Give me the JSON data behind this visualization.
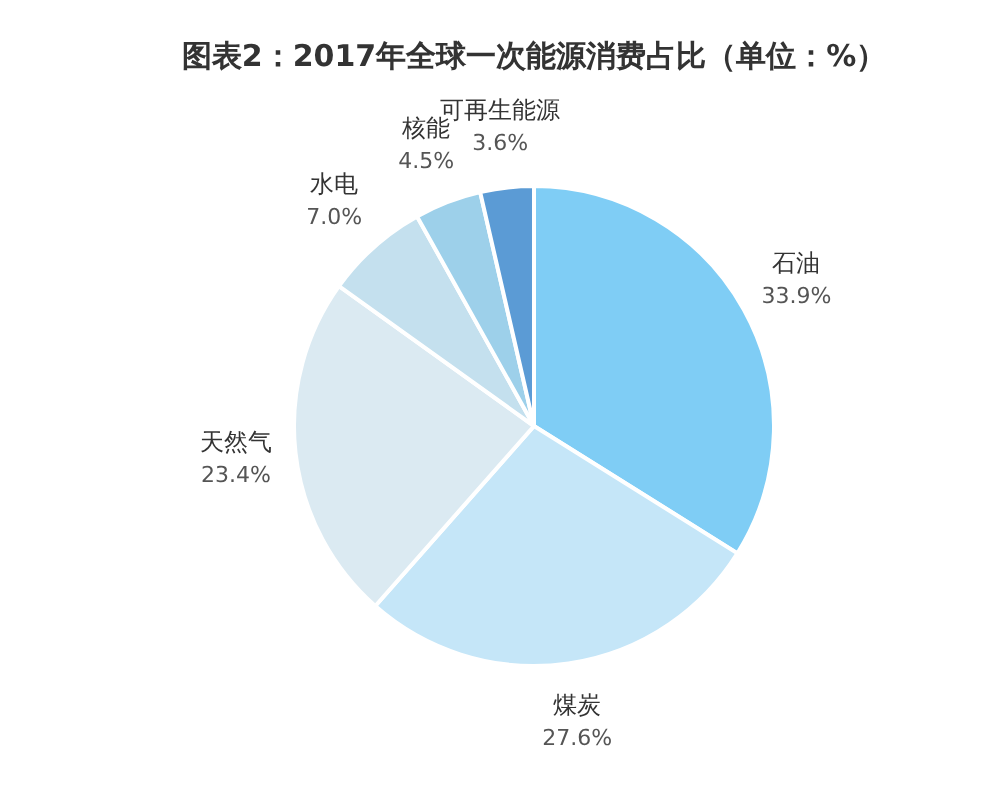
{
  "chart_data": {
    "type": "pie",
    "title": "图表2：2017年全球一次能源消费占比（单位：%）",
    "categories": [
      "石油",
      "煤炭",
      "天然气",
      "水电",
      "核能",
      "可再生能源"
    ],
    "values": [
      33.9,
      27.6,
      23.4,
      7.0,
      4.5,
      3.6
    ],
    "value_labels": [
      "33.9%",
      "27.6%",
      "23.4%",
      "7.0%",
      "4.5%",
      "3.6%"
    ],
    "colors": [
      "#7fcdf5",
      "#c5e6f8",
      "#dbeaf2",
      "#c4e0ee",
      "#9dd0ea",
      "#5b9bd5"
    ]
  }
}
